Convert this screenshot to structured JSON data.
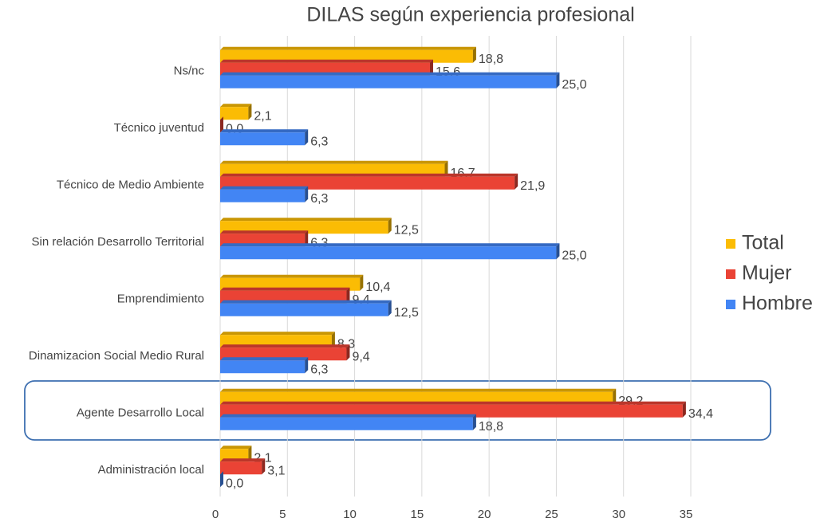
{
  "chart_data": {
    "type": "hbar",
    "title": "DILAS según experiencia profesional",
    "categories": [
      "Ns/nc",
      "Técnico juventud",
      "Técnico de Medio Ambiente",
      "Sin relación Desarrollo Territorial",
      "Emprendimiento",
      "Dinamizacion Social Medio Rural",
      "Agente Desarrollo Local",
      "Administración local"
    ],
    "series": [
      {
        "name": "Total",
        "color": "#fbbc04",
        "values": [
          18.8,
          2.1,
          16.7,
          12.5,
          10.4,
          8.3,
          29.2,
          2.1
        ],
        "value_labels": [
          "18,8",
          "2,1",
          "16,7",
          "12,5",
          "10,4",
          "8,3",
          "29,2",
          "2,1"
        ]
      },
      {
        "name": "Mujer",
        "color": "#ea4335",
        "values": [
          15.6,
          0.0,
          21.9,
          6.3,
          9.4,
          9.4,
          34.4,
          3.1
        ],
        "value_labels": [
          "15,6",
          "0,0",
          "21,9",
          "6,3",
          "9,4",
          "9,4",
          "34,4",
          "3,1"
        ]
      },
      {
        "name": "Hombre",
        "color": "#4285f4",
        "values": [
          25.0,
          6.3,
          6.3,
          25.0,
          12.5,
          6.3,
          18.8,
          0.0
        ],
        "value_labels": [
          "25,0",
          "6,3",
          "6,3",
          "25,0",
          "12,5",
          "6,3",
          "18,8",
          "0,0"
        ]
      }
    ],
    "xlim": [
      0,
      35
    ],
    "xticks": [
      0,
      5,
      10,
      15,
      20,
      25,
      30,
      35
    ],
    "grid": true,
    "legend": "right"
  }
}
